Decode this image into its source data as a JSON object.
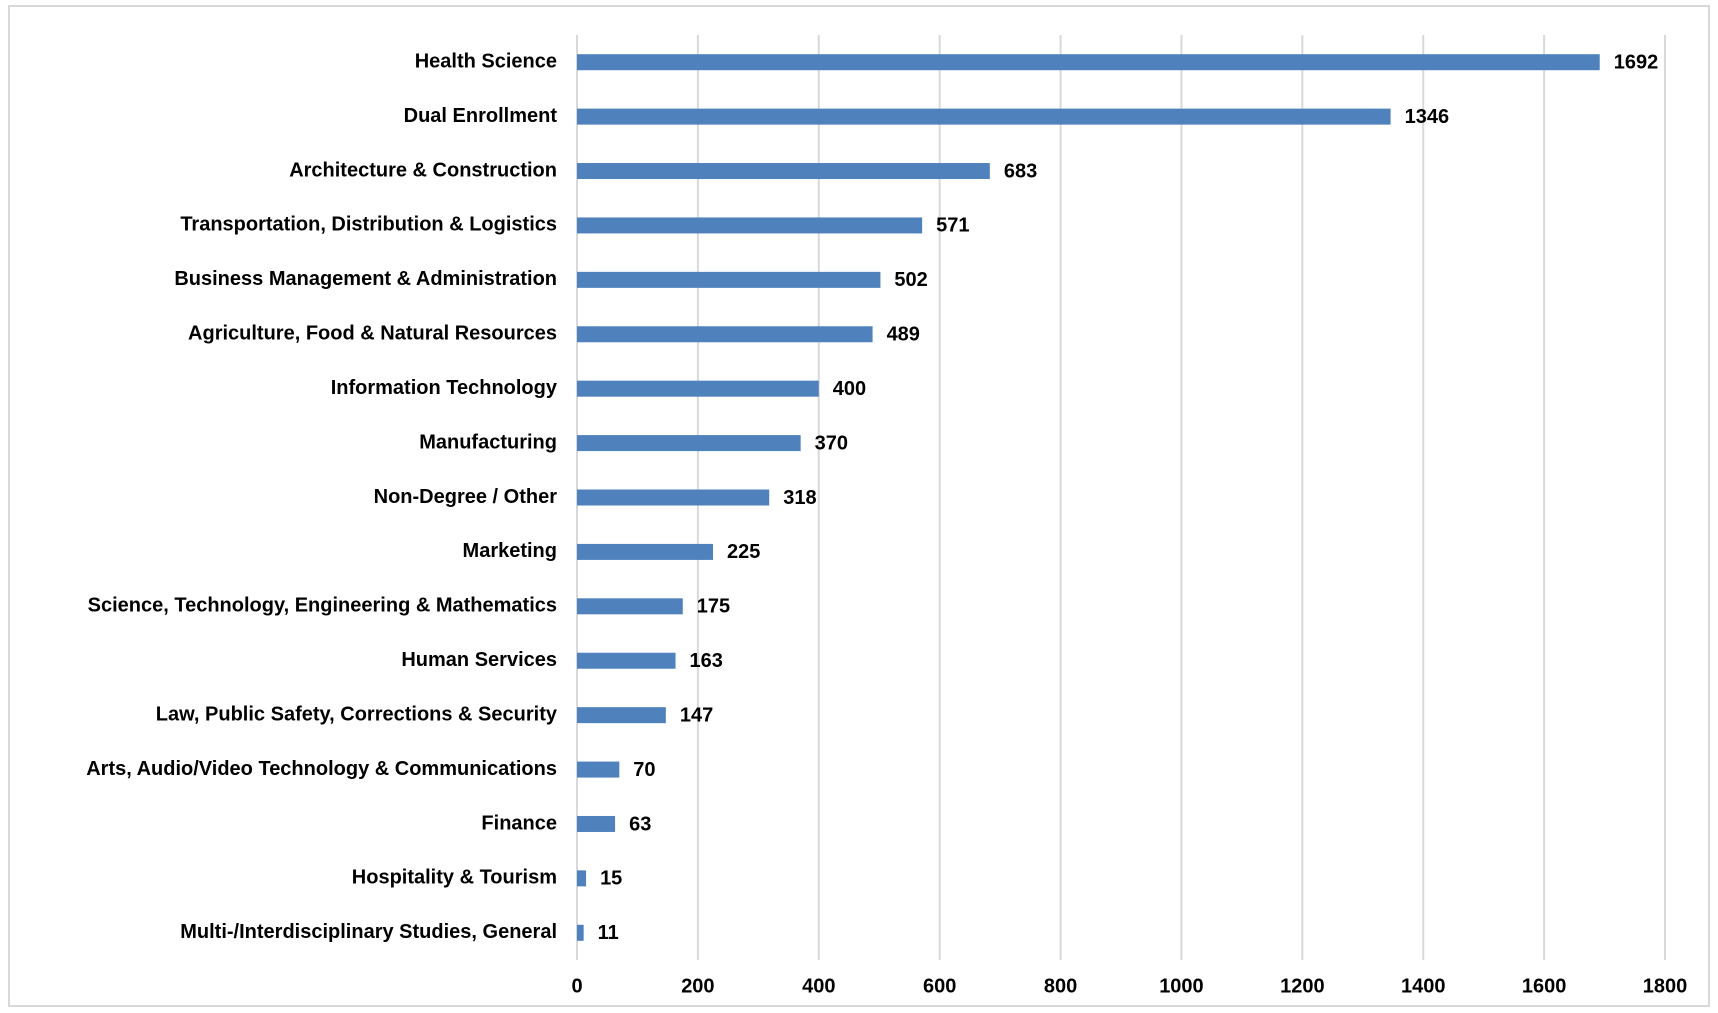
{
  "chart_data": {
    "type": "bar",
    "orientation": "horizontal",
    "categories": [
      "Health Science",
      "Dual Enrollment",
      "Architecture & Construction",
      "Transportation, Distribution & Logistics",
      "Business Management & Administration",
      "Agriculture, Food & Natural Resources",
      "Information Technology",
      "Manufacturing",
      "Non-Degree / Other",
      "Marketing",
      "Science, Technology, Engineering & Mathematics",
      "Human Services",
      "Law, Public Safety, Corrections & Security",
      "Arts, Audio/Video Technology & Communications",
      "Finance",
      "Hospitality & Tourism",
      "Multi-/Interdisciplinary Studies, General"
    ],
    "values": [
      1692,
      1346,
      683,
      571,
      502,
      489,
      400,
      370,
      318,
      225,
      175,
      163,
      147,
      70,
      63,
      15,
      11
    ],
    "color": "#4f81bd",
    "xlim": [
      0,
      1800
    ],
    "xticks": [
      0,
      200,
      400,
      600,
      800,
      1000,
      1200,
      1400,
      1600,
      1800
    ],
    "grid": true
  }
}
